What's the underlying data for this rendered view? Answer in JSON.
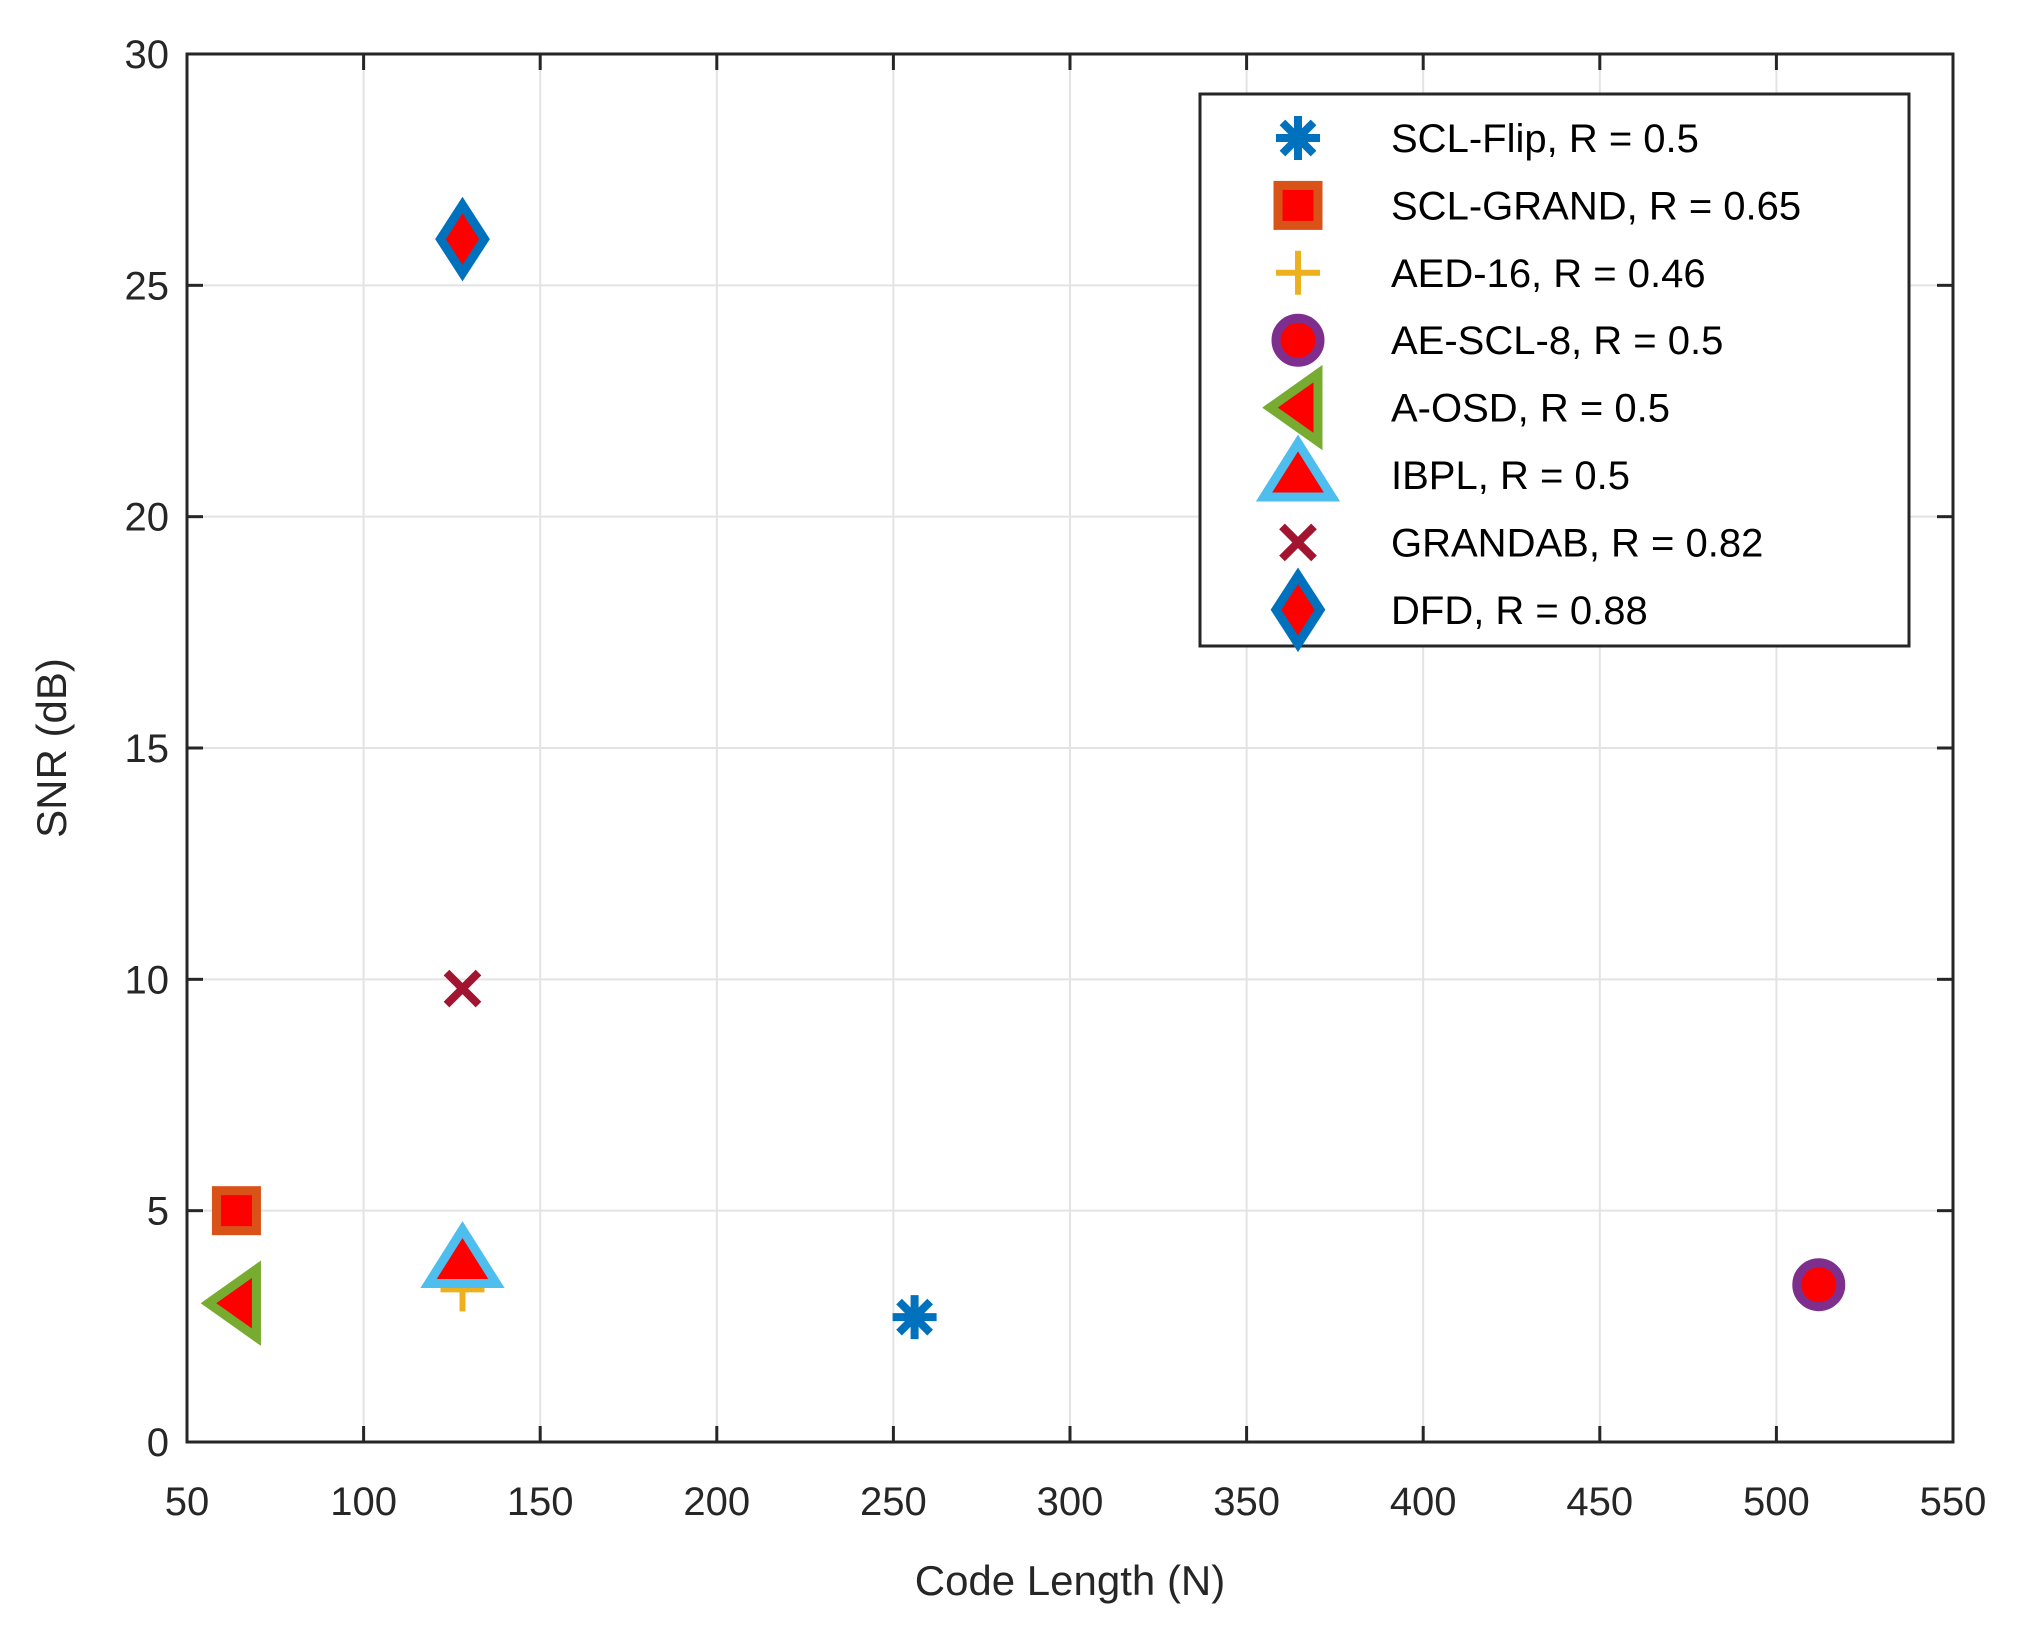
{
  "chart_data": {
    "type": "scatter",
    "title": "",
    "xlabel": "Code Length (N)",
    "ylabel": "SNR (dB)",
    "xlim": [
      50,
      550
    ],
    "ylim": [
      0,
      30
    ],
    "xticks": [
      50,
      100,
      150,
      200,
      250,
      300,
      350,
      400,
      450,
      500,
      550
    ],
    "yticks": [
      0,
      5,
      10,
      15,
      20,
      25,
      30
    ],
    "grid": true,
    "legend_position": "top-right",
    "series": [
      {
        "name": "SCL-Flip, R = 0.5",
        "marker": "asterisk",
        "edge": "#0072BD",
        "fill": "none",
        "x": [
          256
        ],
        "y": [
          2.7
        ]
      },
      {
        "name": "SCL-GRAND, R = 0.65",
        "marker": "square",
        "edge": "#D95319",
        "fill": "#FF0000",
        "x": [
          64
        ],
        "y": [
          5.0
        ]
      },
      {
        "name": "AED-16, R = 0.46",
        "marker": "plus",
        "edge": "#EDB120",
        "fill": "none",
        "x": [
          128
        ],
        "y": [
          3.3
        ]
      },
      {
        "name": "AE-SCL-8, R = 0.5",
        "marker": "circle",
        "edge": "#7E2F8E",
        "fill": "#FF0000",
        "x": [
          512
        ],
        "y": [
          3.4
        ]
      },
      {
        "name": "A-OSD, R = 0.5",
        "marker": "triangle-left",
        "edge": "#77AC30",
        "fill": "#FF0000",
        "x": [
          64
        ],
        "y": [
          3.0
        ]
      },
      {
        "name": "IBPL, R = 0.5",
        "marker": "triangle-up",
        "edge": "#4DBEEE",
        "fill": "#FF0000",
        "x": [
          128
        ],
        "y": [
          3.9
        ]
      },
      {
        "name": "GRANDAB, R = 0.82",
        "marker": "x",
        "edge": "#A2142F",
        "fill": "none",
        "x": [
          128
        ],
        "y": [
          9.8
        ]
      },
      {
        "name": "DFD, R = 0.88",
        "marker": "diamond",
        "edge": "#0072BD",
        "fill": "#FF0000",
        "x": [
          128
        ],
        "y": [
          26.0
        ]
      }
    ]
  }
}
